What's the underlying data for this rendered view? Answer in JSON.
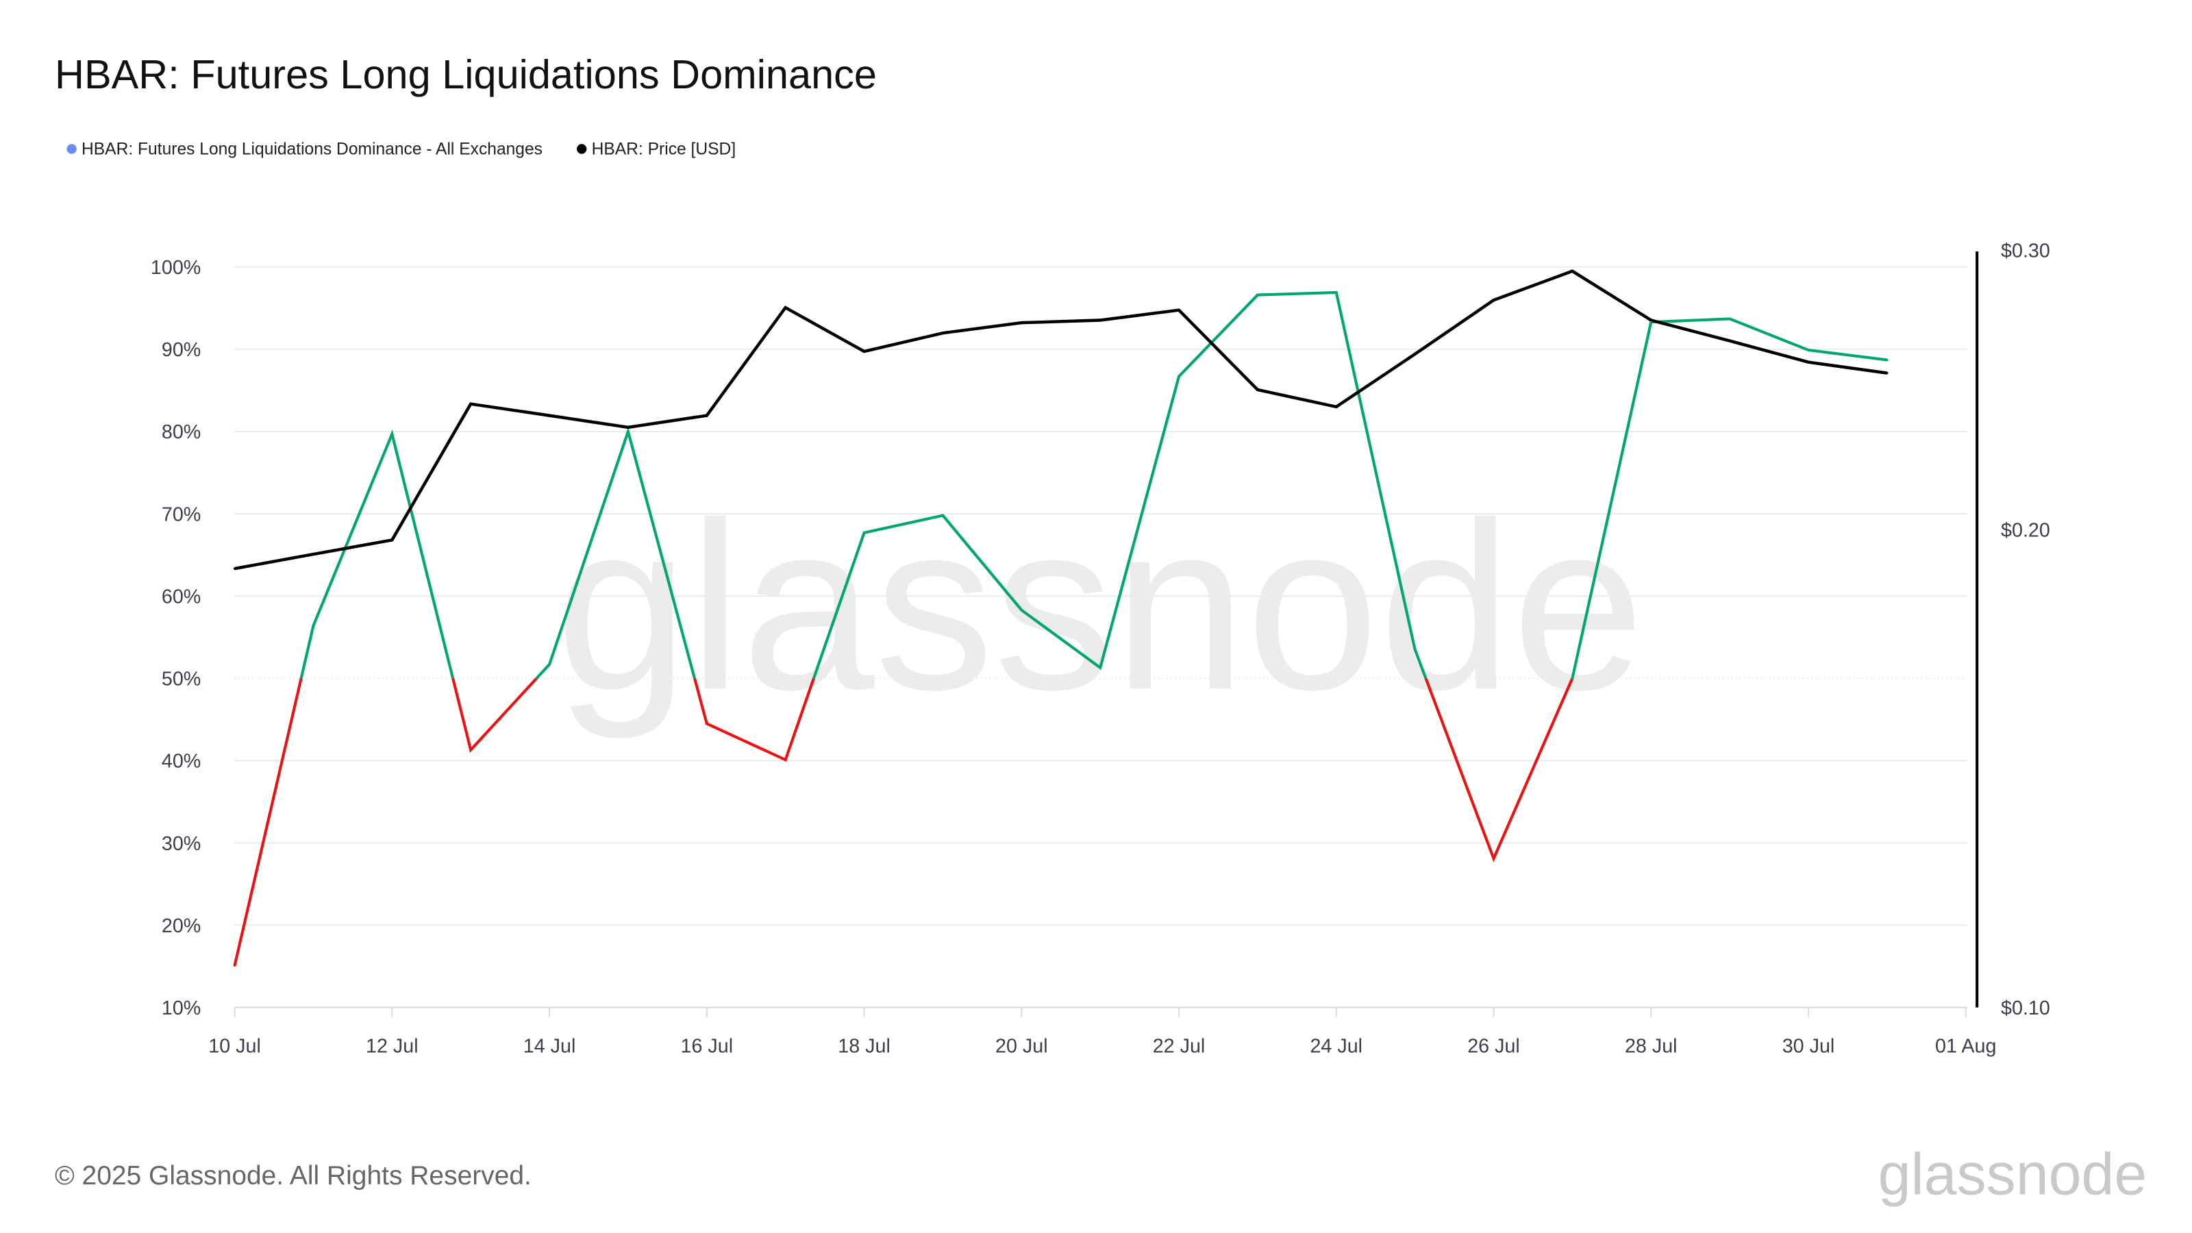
{
  "title": "HBAR: Futures Long Liquidations Dominance",
  "footer": {
    "copyright": "© 2025 Glassnode. All Rights Reserved.",
    "logo": "glassnode"
  },
  "watermark": "glassnode",
  "colors": {
    "above": "#00a86b",
    "below": "#ee1111",
    "price": "#000000",
    "legend_dominance": "#6b8cf5",
    "legend_price": "#000000"
  },
  "chart_data": {
    "type": "line",
    "title": "HBAR: Futures Long Liquidations Dominance",
    "legend": {
      "placement": "top-left",
      "entries": [
        "HBAR: Futures Long Liquidations Dominance - All Exchanges",
        "HBAR: Price [USD]"
      ]
    },
    "x": [
      "10 Jul",
      "11 Jul",
      "12 Jul",
      "13 Jul",
      "14 Jul",
      "15 Jul",
      "16 Jul",
      "17 Jul",
      "18 Jul",
      "19 Jul",
      "20 Jul",
      "21 Jul",
      "22 Jul",
      "23 Jul",
      "24 Jul",
      "25 Jul",
      "26 Jul",
      "27 Jul",
      "28 Jul",
      "29 Jul",
      "30 Jul",
      "31 Jul"
    ],
    "x_ticks": [
      "10 Jul",
      "12 Jul",
      "14 Jul",
      "16 Jul",
      "18 Jul",
      "20 Jul",
      "22 Jul",
      "24 Jul",
      "26 Jul",
      "28 Jul",
      "30 Jul",
      "01 Aug"
    ],
    "grid": true,
    "series": [
      {
        "name": "HBAR: Futures Long Liquidations Dominance - All Exchanges",
        "axis": "left",
        "threshold": 50,
        "values": [
          15.1,
          56.4,
          79.7,
          41.3,
          51.7,
          80.0,
          44.5,
          40.1,
          67.7,
          69.8,
          58.3,
          51.3,
          86.7,
          96.6,
          96.9,
          53.5,
          28.1,
          50.0,
          93.3,
          93.7,
          89.9,
          88.7
        ]
      },
      {
        "name": "HBAR: Price [USD]",
        "axis": "right",
        "values": [
          0.189,
          0.193,
          0.197,
          0.24,
          0.236,
          0.232,
          0.236,
          0.276,
          0.259,
          0.266,
          0.27,
          0.271,
          0.275,
          0.245,
          0.239,
          0.258,
          0.279,
          0.291,
          0.271,
          0.263,
          0.255,
          0.251
        ]
      }
    ],
    "y_left": {
      "ticks": [
        "10%",
        "20%",
        "30%",
        "40%",
        "50%",
        "60%",
        "70%",
        "80%",
        "90%",
        "100%"
      ],
      "range": [
        10,
        100
      ],
      "scale": "linear"
    },
    "y_right": {
      "ticks": [
        "$0.10",
        "$0.20",
        "$0.30"
      ],
      "range": [
        0.1,
        0.3
      ],
      "scale": "log"
    }
  }
}
